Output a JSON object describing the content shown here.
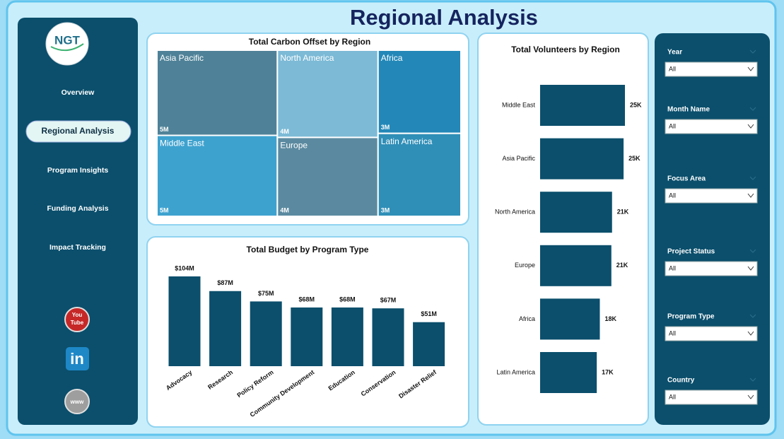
{
  "header": {
    "title": "Regional Analysis"
  },
  "logo": {
    "text": "NGT"
  },
  "nav": [
    "Overview",
    "Regional Analysis",
    "Program Insights",
    "Funding Analysis",
    "Impact Tracking"
  ],
  "social": {
    "youtube": [
      "You",
      "Tube"
    ],
    "linkedin": "in",
    "web": "www"
  },
  "filters": [
    {
      "label": "Year",
      "value": "All"
    },
    {
      "label": "Month Name",
      "value": "All"
    },
    {
      "label": "Focus Area",
      "value": "All"
    },
    {
      "label": "Project Status",
      "value": "All"
    },
    {
      "label": "Program Type",
      "value": "All"
    },
    {
      "label": "Country",
      "value": "All"
    }
  ],
  "chart_data": [
    {
      "type": "treemap",
      "title": "Total Carbon Offset by Region",
      "categories": [
        "Asia Pacific",
        "Middle East",
        "North America",
        "Europe",
        "Africa",
        "Latin America"
      ],
      "values": [
        5000000,
        4750000,
        4280000,
        3870000,
        3360000,
        3350000
      ],
      "value_labels": [
        "5M",
        "5M",
        "4M",
        "4M",
        "3M",
        "3M"
      ],
      "colors": [
        "#4f8298",
        "#3ea2cf",
        "#7cbad6",
        "#5b8aa0",
        "#2388b8",
        "#2f8fb7"
      ]
    },
    {
      "type": "bar",
      "title": "Total Budget by Program Type",
      "categories": [
        "Advocacy",
        "Research",
        "Policy Reform",
        "Community Development",
        "Education",
        "Conservation",
        "Disaster Relief"
      ],
      "values": [
        104000000,
        87000000,
        75000000,
        68000000,
        68000000,
        67000000,
        51000000
      ],
      "value_labels": [
        "$104M",
        "$87M",
        "$75M",
        "$68M",
        "$68M",
        "$67M",
        "$51M"
      ],
      "color": "#0b4f6c"
    },
    {
      "type": "bar",
      "orientation": "horizontal",
      "title": "Total Volunteers by Region",
      "categories": [
        "Middle East",
        "Asia Pacific",
        "North America",
        "Europe",
        "Africa",
        "Latin America"
      ],
      "values": [
        25000,
        24600,
        21200,
        21000,
        17600,
        16700
      ],
      "value_labels": [
        "25K",
        "25K",
        "21K",
        "21K",
        "18K",
        "17K"
      ],
      "color": "#0b4f6c"
    }
  ]
}
